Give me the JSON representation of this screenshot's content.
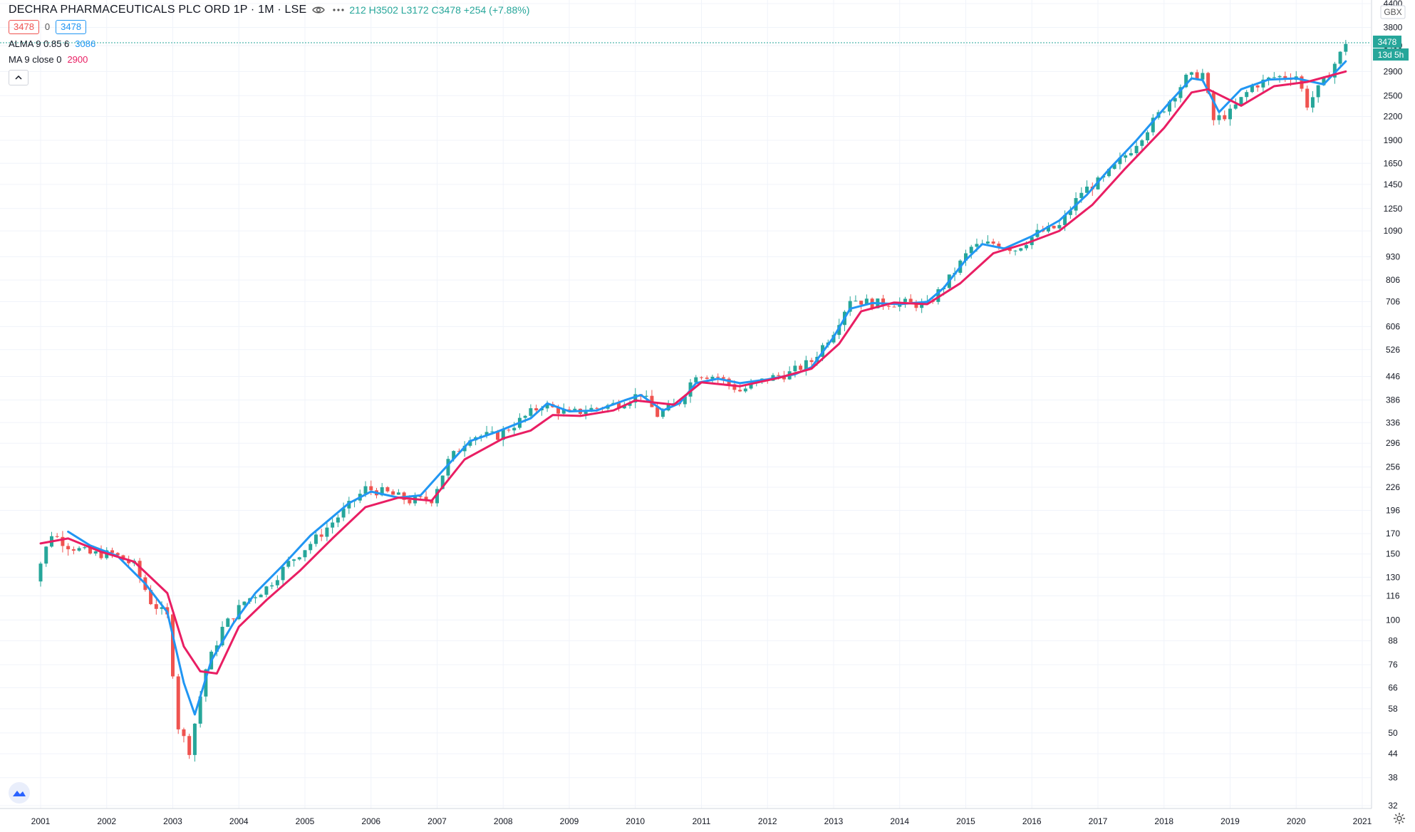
{
  "header": {
    "title": "DECHRA PHARMACEUTICALS PLC ORD 1P · 1M · LSE",
    "ohlc": "212  H3502  L3172  C3478  +254 (+7.88%)",
    "price_box_red": "3478",
    "price_box_zero": "0",
    "price_box_blue": "3478"
  },
  "indicators": [
    {
      "label": "ALMA 9 0.85 6",
      "value": "3086",
      "color": "#2196f3"
    },
    {
      "label": "MA 9 close 0",
      "value": "2900",
      "color": "#e91e63"
    }
  ],
  "axis": {
    "currency": "GBX",
    "last_price_label": "3478",
    "countdown_label": "13d 5h",
    "y_ticks": [
      "32",
      "38",
      "44",
      "50",
      "58",
      "66",
      "76",
      "88",
      "100",
      "116",
      "130",
      "150",
      "170",
      "196",
      "226",
      "256",
      "296",
      "336",
      "386",
      "446",
      "526",
      "606",
      "706",
      "806",
      "930",
      "1090",
      "1250",
      "1450",
      "1650",
      "1900",
      "2200",
      "2500",
      "2900",
      "3400",
      "3800",
      "4400"
    ],
    "x_ticks": [
      "2001",
      "2002",
      "2003",
      "2004",
      "2005",
      "2006",
      "2007",
      "2008",
      "2009",
      "2010",
      "2011",
      "2012",
      "2013",
      "2014",
      "2015",
      "2016",
      "2017",
      "2018",
      "2019",
      "2020",
      "2021"
    ]
  },
  "colors": {
    "up": "#26a69a",
    "down": "#ef5350",
    "alma": "#2196f3",
    "ma": "#e91e63",
    "grid": "#f0f3fa"
  },
  "chart_data": {
    "type": "candlestick",
    "scale": "log",
    "ylim": [
      32,
      4400
    ],
    "xlim": [
      "2000-09",
      "2021-03"
    ],
    "grid": true,
    "series": [
      {
        "name": "ALMA 9 0.85 6",
        "points": [
          [
            "2001-06",
            172
          ],
          [
            "2001-10",
            158
          ],
          [
            "2002-03",
            148
          ],
          [
            "2002-08",
            125
          ],
          [
            "2002-12",
            105
          ],
          [
            "2003-03",
            68
          ],
          [
            "2003-05",
            56
          ],
          [
            "2003-08",
            78
          ],
          [
            "2003-12",
            98
          ],
          [
            "2004-04",
            118
          ],
          [
            "2004-09",
            140
          ],
          [
            "2005-02",
            168
          ],
          [
            "2005-09",
            205
          ],
          [
            "2006-01",
            220
          ],
          [
            "2006-06",
            212
          ],
          [
            "2006-10",
            215
          ],
          [
            "2007-02",
            250
          ],
          [
            "2007-07",
            300
          ],
          [
            "2007-12",
            318
          ],
          [
            "2008-06",
            345
          ],
          [
            "2008-09",
            378
          ],
          [
            "2009-01",
            360
          ],
          [
            "2009-06",
            362
          ],
          [
            "2009-11",
            385
          ],
          [
            "2010-02",
            398
          ],
          [
            "2010-06",
            362
          ],
          [
            "2010-09",
            378
          ],
          [
            "2010-12",
            428
          ],
          [
            "2011-04",
            440
          ],
          [
            "2011-08",
            428
          ],
          [
            "2012-01",
            438
          ],
          [
            "2012-06",
            452
          ],
          [
            "2012-09",
            472
          ],
          [
            "2013-01",
            568
          ],
          [
            "2013-04",
            676
          ],
          [
            "2013-08",
            700
          ],
          [
            "2014-01",
            695
          ],
          [
            "2014-06",
            705
          ],
          [
            "2014-09",
            768
          ],
          [
            "2015-01",
            912
          ],
          [
            "2015-04",
            1005
          ],
          [
            "2015-08",
            978
          ],
          [
            "2016-01",
            1055
          ],
          [
            "2016-06",
            1162
          ],
          [
            "2016-11",
            1360
          ],
          [
            "2017-03",
            1590
          ],
          [
            "2017-08",
            1900
          ],
          [
            "2018-02",
            2400
          ],
          [
            "2018-06",
            2780
          ],
          [
            "2018-08",
            2750
          ],
          [
            "2018-11",
            2260
          ],
          [
            "2019-03",
            2600
          ],
          [
            "2019-08",
            2760
          ],
          [
            "2020-01",
            2780
          ],
          [
            "2020-06",
            2680
          ],
          [
            "2020-10",
            3086
          ]
        ]
      },
      {
        "name": "MA 9 close 0",
        "points": [
          [
            "2001-01",
            160
          ],
          [
            "2001-06",
            165
          ],
          [
            "2001-12",
            152
          ],
          [
            "2002-06",
            143
          ],
          [
            "2002-12",
            118
          ],
          [
            "2003-03",
            85
          ],
          [
            "2003-06",
            73
          ],
          [
            "2003-09",
            72
          ],
          [
            "2004-01",
            96
          ],
          [
            "2004-06",
            113
          ],
          [
            "2004-12",
            135
          ],
          [
            "2005-06",
            165
          ],
          [
            "2005-12",
            200
          ],
          [
            "2006-06",
            212
          ],
          [
            "2006-12",
            208
          ],
          [
            "2007-06",
            268
          ],
          [
            "2008-01",
            305
          ],
          [
            "2008-06",
            320
          ],
          [
            "2008-10",
            352
          ],
          [
            "2009-03",
            350
          ],
          [
            "2009-09",
            362
          ],
          [
            "2010-01",
            385
          ],
          [
            "2010-08",
            375
          ],
          [
            "2011-01",
            430
          ],
          [
            "2011-08",
            420
          ],
          [
            "2012-03",
            442
          ],
          [
            "2012-09",
            468
          ],
          [
            "2013-02",
            545
          ],
          [
            "2013-06",
            665
          ],
          [
            "2013-12",
            702
          ],
          [
            "2014-06",
            695
          ],
          [
            "2014-12",
            790
          ],
          [
            "2015-06",
            950
          ],
          [
            "2015-12",
            1010
          ],
          [
            "2016-06",
            1090
          ],
          [
            "2016-12",
            1280
          ],
          [
            "2017-06",
            1600
          ],
          [
            "2018-01",
            2050
          ],
          [
            "2018-06",
            2550
          ],
          [
            "2018-09",
            2600
          ],
          [
            "2019-03",
            2350
          ],
          [
            "2019-09",
            2650
          ],
          [
            "2020-03",
            2720
          ],
          [
            "2020-10",
            2900
          ]
        ]
      }
    ],
    "candles_approx_close": [
      [
        "2000-10",
        118
      ],
      [
        "2000-12",
        130
      ],
      [
        "2001-03",
        170
      ],
      [
        "2001-06",
        158
      ],
      [
        "2001-10",
        150
      ],
      [
        "2002-02",
        150
      ],
      [
        "2002-06",
        140
      ],
      [
        "2002-09",
        112
      ],
      [
        "2002-12",
        102
      ],
      [
        "2003-02",
        52
      ],
      [
        "2003-04",
        45
      ],
      [
        "2003-07",
        74
      ],
      [
        "2003-10",
        95
      ],
      [
        "2004-02",
        112
      ],
      [
        "2004-06",
        122
      ],
      [
        "2004-10",
        142
      ],
      [
        "2005-03",
        165
      ],
      [
        "2005-08",
        195
      ],
      [
        "2005-12",
        224
      ],
      [
        "2006-04",
        218
      ],
      [
        "2006-08",
        208
      ],
      [
        "2006-12",
        210
      ],
      [
        "2007-03",
        265
      ],
      [
        "2007-07",
        310
      ],
      [
        "2007-12",
        310
      ],
      [
        "2008-04",
        340
      ],
      [
        "2008-08",
        375
      ],
      [
        "2009-01",
        355
      ],
      [
        "2009-05",
        365
      ],
      [
        "2009-10",
        378
      ],
      [
        "2010-02",
        402
      ],
      [
        "2010-05",
        352
      ],
      [
        "2010-09",
        382
      ],
      [
        "2010-12",
        455
      ],
      [
        "2011-04",
        445
      ],
      [
        "2011-08",
        408
      ],
      [
        "2012-01",
        440
      ],
      [
        "2012-05",
        455
      ],
      [
        "2012-09",
        490
      ],
      [
        "2013-01",
        590
      ],
      [
        "2013-04",
        720
      ],
      [
        "2013-08",
        698
      ],
      [
        "2014-01",
        702
      ],
      [
        "2014-06",
        690
      ],
      [
        "2014-10",
        812
      ],
      [
        "2015-02",
        985
      ],
      [
        "2015-06",
        1010
      ],
      [
        "2015-10",
        975
      ],
      [
        "2016-02",
        1075
      ],
      [
        "2016-06",
        1120
      ],
      [
        "2016-10",
        1385
      ],
      [
        "2017-02",
        1500
      ],
      [
        "2017-07",
        1800
      ],
      [
        "2018-01",
        2320
      ],
      [
        "2018-05",
        2780
      ],
      [
        "2018-08",
        2860
      ],
      [
        "2018-10",
        2150
      ],
      [
        "2019-01",
        2250
      ],
      [
        "2019-05",
        2650
      ],
      [
        "2019-09",
        2800
      ],
      [
        "2020-01",
        2830
      ],
      [
        "2020-03",
        2370
      ],
      [
        "2020-06",
        2720
      ],
      [
        "2020-09",
        3224
      ],
      [
        "2020-10",
        3478
      ]
    ]
  }
}
